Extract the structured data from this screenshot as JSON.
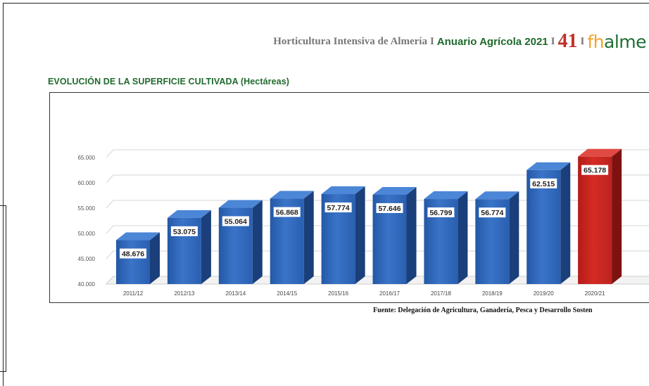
{
  "header": {
    "publication": "Horticultura Intensiva de Almería",
    "separator": "I",
    "yearbook": "Anuario Agrícola 2021",
    "page_number": "41",
    "logo_letter_f": "f",
    "logo_letter_h": "h",
    "logo_rest": "alme"
  },
  "chart_data": {
    "type": "bar",
    "title": "EVOLUCIÓN DE LA SUPERFICIE CULTIVADA (Hectáreas)",
    "categories": [
      "2011/12",
      "2012/13",
      "2013/14",
      "2014/15",
      "2015/16",
      "2016/17",
      "2017/18",
      "2018/19",
      "2019/20",
      "2020/21"
    ],
    "values": [
      48676,
      53075,
      55064,
      56868,
      57774,
      57646,
      56799,
      56774,
      62515,
      65178
    ],
    "value_labels": [
      "48.676",
      "53.075",
      "55.064",
      "56.868",
      "57.774",
      "57.646",
      "56.799",
      "56.774",
      "62.515",
      "65.178"
    ],
    "y_ticks": [
      40000,
      45000,
      50000,
      55000,
      60000,
      65000
    ],
    "y_tick_labels": [
      "40.000",
      "45.000",
      "50.000",
      "55.000",
      "60.000",
      "65.000"
    ],
    "ylim": [
      40000,
      65000
    ],
    "grid": true,
    "legend": "none",
    "colors": {
      "bar": "#2f65b8",
      "bar_highlight": "#c1231f"
    }
  },
  "source": "Fuente: Delegación de Agricultura, Ganadería, Pesca y Desarrollo Sosten"
}
